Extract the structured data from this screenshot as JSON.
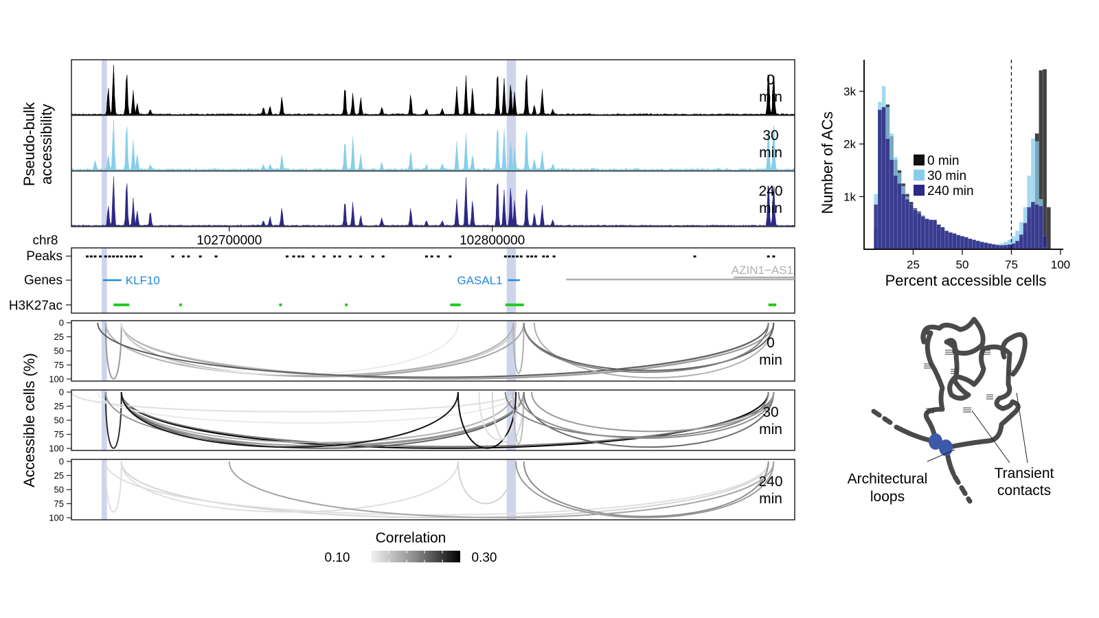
{
  "chart_data": [
    {
      "id": "pseudobulk",
      "type": "area",
      "ylabel": [
        "Pseudo-bulk",
        "accessibility"
      ],
      "x_axis": {
        "chromosome": "chr8",
        "range": [
          102640000,
          102915000
        ],
        "ticks": [
          102700000,
          102800000
        ],
        "tick_labels": [
          "102700000",
          "102800000"
        ]
      },
      "highlight_regions": [
        [
          102651500,
          102653500
        ],
        [
          102805500,
          102809000
        ]
      ],
      "series": [
        {
          "name": "0 min",
          "label": [
            "0",
            "min"
          ],
          "color": "#000000",
          "peaks": [
            [
              102654000,
              0.55
            ],
            [
              102656000,
              1.0
            ],
            [
              102661000,
              0.88
            ],
            [
              102663500,
              0.48
            ],
            [
              102665000,
              0.22
            ],
            [
              102670000,
              0.1
            ],
            [
              102713000,
              0.15
            ],
            [
              102715500,
              0.17
            ],
            [
              102720000,
              0.36
            ],
            [
              102744000,
              0.58
            ],
            [
              102747000,
              0.42
            ],
            [
              102750000,
              0.35
            ],
            [
              102758000,
              0.15
            ],
            [
              102769000,
              0.4
            ],
            [
              102775000,
              0.12
            ],
            [
              102781000,
              0.12
            ],
            [
              102786500,
              0.55
            ],
            [
              102790000,
              0.78
            ],
            [
              102792500,
              0.55
            ],
            [
              102802000,
              0.9
            ],
            [
              102804500,
              0.72
            ],
            [
              102807000,
              0.64
            ],
            [
              102808500,
              0.45
            ],
            [
              102813000,
              0.88
            ],
            [
              102816000,
              0.2
            ],
            [
              102819000,
              0.5
            ],
            [
              102823000,
              0.1
            ],
            [
              102905000,
              0.95
            ],
            [
              102907000,
              0.88
            ]
          ]
        },
        {
          "name": "30 min",
          "label": [
            "30",
            "min"
          ],
          "color": "#87ceeb",
          "peaks": [
            [
              102649000,
              0.2
            ],
            [
              102654000,
              0.3
            ],
            [
              102656000,
              1.0
            ],
            [
              102661000,
              0.95
            ],
            [
              102663500,
              0.6
            ],
            [
              102665000,
              0.3
            ],
            [
              102670000,
              0.1
            ],
            [
              102713000,
              0.1
            ],
            [
              102715500,
              0.12
            ],
            [
              102720000,
              0.28
            ],
            [
              102744000,
              0.62
            ],
            [
              102747000,
              0.66
            ],
            [
              102750000,
              0.3
            ],
            [
              102758000,
              0.15
            ],
            [
              102769000,
              0.35
            ],
            [
              102775000,
              0.1
            ],
            [
              102781000,
              0.1
            ],
            [
              102786500,
              0.55
            ],
            [
              102790000,
              0.7
            ],
            [
              102792500,
              0.3
            ],
            [
              102802000,
              0.95
            ],
            [
              102804500,
              0.8
            ],
            [
              102807000,
              0.6
            ],
            [
              102808500,
              0.4
            ],
            [
              102813000,
              0.84
            ],
            [
              102816000,
              0.2
            ],
            [
              102819000,
              0.36
            ],
            [
              102823000,
              0.12
            ],
            [
              102905000,
              0.85
            ],
            [
              102907000,
              1.0
            ]
          ]
        },
        {
          "name": "240 min",
          "label": [
            "240",
            "min"
          ],
          "color": "#2e2886",
          "peaks": [
            [
              102654000,
              0.4
            ],
            [
              102656000,
              1.0
            ],
            [
              102661000,
              0.95
            ],
            [
              102663500,
              0.56
            ],
            [
              102665000,
              0.3
            ],
            [
              102670000,
              0.3
            ],
            [
              102713000,
              0.1
            ],
            [
              102715500,
              0.18
            ],
            [
              102720000,
              0.36
            ],
            [
              102744000,
              0.52
            ],
            [
              102747000,
              0.48
            ],
            [
              102750000,
              0.2
            ],
            [
              102758000,
              0.15
            ],
            [
              102769000,
              0.36
            ],
            [
              102775000,
              0.1
            ],
            [
              102781000,
              0.1
            ],
            [
              102786500,
              0.52
            ],
            [
              102790000,
              0.97
            ],
            [
              102792500,
              0.52
            ],
            [
              102802000,
              1.0
            ],
            [
              102804500,
              0.72
            ],
            [
              102807000,
              0.8
            ],
            [
              102808500,
              0.5
            ],
            [
              102813000,
              0.8
            ],
            [
              102816000,
              0.25
            ],
            [
              102819000,
              0.4
            ],
            [
              102823000,
              0.12
            ],
            [
              102905000,
              0.95
            ],
            [
              102907000,
              0.9
            ]
          ]
        }
      ]
    },
    {
      "id": "annotation-tracks",
      "type": "table",
      "tracks": [
        "Peaks",
        "Genes",
        "H3K27ac"
      ],
      "peaks": [
        102646000,
        102647500,
        102649000,
        102651000,
        102653000,
        102654500,
        102656000,
        102657500,
        102659000,
        102661000,
        102662500,
        102664000,
        102666500,
        102678500,
        102682500,
        102684500,
        102689000,
        102695000,
        102722000,
        102724500,
        102726500,
        102728000,
        102732000,
        102736000,
        102740000,
        102742000,
        102746000,
        102750000,
        102754500,
        102758500,
        102775000,
        102777000,
        102779500,
        102784000,
        102805000,
        102806500,
        102808000,
        102809500,
        102811000,
        102813500,
        102815000,
        102816500,
        102819500,
        102821000,
        102823500,
        102877000,
        102905000,
        102907000
      ],
      "genes": [
        {
          "name": "KLF10",
          "start": 102652000,
          "end": 102659000,
          "color": "#1e88e5"
        },
        {
          "name": "GASAL1",
          "start": 102806000,
          "end": 102810500,
          "color": "#1e88e5"
        },
        {
          "name": "AZIN1−AS1",
          "start": 102828000,
          "end": 102915000,
          "color": "#b0b0b0"
        }
      ],
      "h3k27ac": [
        [
          102656000,
          102662000
        ],
        [
          102681000,
          102682000
        ],
        [
          102719000,
          102720000
        ],
        [
          102744000,
          102745000
        ],
        [
          102784000,
          102788000
        ],
        [
          102805000,
          102812000
        ],
        [
          102905000,
          102908000
        ]
      ],
      "h3k27ac_color": "#22cc22"
    },
    {
      "id": "co-accessibility-arcs",
      "type": "line",
      "ylabel": "Accessible cells (%)",
      "y_ticks": [
        "0",
        "25",
        "50",
        "75",
        "100"
      ],
      "ylim": [
        0,
        100
      ],
      "colorbar": {
        "title": "Correlation",
        "min_label": "0.10",
        "max_label": "0.30",
        "range": [
          0.1,
          0.3
        ]
      },
      "panels": [
        {
          "name": "0 min",
          "label": [
            "0",
            "min"
          ],
          "arcs": [
            [
              102653000,
              102659000,
              100,
              0.17
            ],
            [
              102659000,
              102907000,
              100,
              0.17
            ],
            [
              102659000,
              102905000,
              98,
              0.14
            ],
            [
              102659000,
              102809000,
              95,
              0.13
            ],
            [
              102659000,
              102812000,
              96,
              0.16
            ],
            [
              102653000,
              102808000,
              94,
              0.15
            ],
            [
              102659000,
              102787000,
              92,
              0.1
            ],
            [
              102650000,
              102905000,
              97,
              0.22
            ],
            [
              102808000,
              102812000,
              90,
              0.15
            ],
            [
              102816000,
              102907000,
              98,
              0.15
            ],
            [
              102812000,
              102907000,
              85,
              0.22
            ],
            [
              102812000,
              102905000,
              88,
              0.19
            ]
          ]
        },
        {
          "name": "30 min",
          "label": [
            "30",
            "min"
          ],
          "arcs": [
            [
              102653000,
              102659000,
              100,
              0.26
            ],
            [
              102659000,
              102905000,
              100,
              0.3
            ],
            [
              102659000,
              102907000,
              97,
              0.2
            ],
            [
              102659000,
              102812000,
              96,
              0.18
            ],
            [
              102659000,
              102808000,
              90,
              0.15
            ],
            [
              102650000,
              102809000,
              55,
              0.1
            ],
            [
              102640000,
              102809000,
              35,
              0.11
            ],
            [
              102659000,
              102812000,
              100,
              0.22
            ],
            [
              102653000,
              102812000,
              95,
              0.17
            ],
            [
              102659000,
              102787000,
              98,
              0.28
            ],
            [
              102787000,
              102809000,
              100,
              0.29
            ],
            [
              102795000,
              102810000,
              85,
              0.11
            ],
            [
              102800000,
              102812000,
              90,
              0.12
            ],
            [
              102808000,
              102812000,
              92,
              0.14
            ],
            [
              102812000,
              102907000,
              98,
              0.21
            ],
            [
              102805000,
              102905000,
              80,
              0.19
            ],
            [
              102810000,
              102907000,
              82,
              0.18
            ],
            [
              102815000,
              102907000,
              70,
              0.17
            ]
          ]
        },
        {
          "name": "240 min",
          "label": [
            "240",
            "min"
          ],
          "arcs": [
            [
              102653000,
              102659000,
              90,
              0.11
            ],
            [
              102659000,
              102905000,
              100,
              0.12
            ],
            [
              102653000,
              102905000,
              95,
              0.11
            ],
            [
              102659000,
              102787000,
              90,
              0.11
            ],
            [
              102787000,
              102808000,
              75,
              0.12
            ],
            [
              102809000,
              102907000,
              100,
              0.17
            ],
            [
              102812000,
              102905000,
              98,
              0.18
            ],
            [
              102700000,
              102907000,
              100,
              0.16
            ]
          ]
        }
      ]
    },
    {
      "id": "histogram",
      "type": "bar",
      "xlabel": "Percent accessible cells",
      "ylabel": "Number of ACs",
      "xlim": [
        0,
        100
      ],
      "ylim": [
        0,
        3600
      ],
      "x_ticks": [
        25,
        50,
        75,
        100
      ],
      "x_tick_labels": [
        "25",
        "50",
        "75",
        "100"
      ],
      "y_ticks": [
        1000,
        2000,
        3000
      ],
      "y_tick_labels": [
        "1k",
        "2k",
        "3k"
      ],
      "vline": 75,
      "bin_start": 5,
      "bin_width": 2,
      "legend_position": "center-left",
      "series": [
        {
          "name": "0 min",
          "color": "#111111",
          "values": [
            400,
            2650,
            2700,
            2750,
            2150,
            1700,
            1500,
            1250,
            1050,
            900,
            780,
            720,
            640,
            570,
            560,
            540,
            470,
            420,
            350,
            320,
            300,
            270,
            250,
            230,
            200,
            180,
            160,
            140,
            125,
            110,
            95,
            80,
            80,
            85,
            95,
            110,
            150,
            220,
            350,
            580,
            850,
            2200,
            3400,
            3420,
            800
          ]
        },
        {
          "name": "30 min",
          "color": "#87ceeb",
          "values": [
            1050,
            2800,
            3100,
            2700,
            2200,
            1750,
            1450,
            1200,
            1000,
            850,
            760,
            700,
            630,
            570,
            560,
            540,
            470,
            420,
            350,
            320,
            300,
            270,
            250,
            230,
            200,
            180,
            160,
            140,
            125,
            110,
            100,
            100,
            110,
            140,
            180,
            250,
            350,
            520,
            800,
            1400,
            2100,
            2050,
            950,
            50,
            0
          ]
        },
        {
          "name": "240 min",
          "color": "#2e2886",
          "values": [
            850,
            2650,
            2700,
            2100,
            1700,
            1400,
            1250,
            1050,
            950,
            850,
            750,
            690,
            620,
            580,
            560,
            560,
            470,
            420,
            350,
            320,
            300,
            270,
            250,
            230,
            200,
            180,
            160,
            140,
            125,
            110,
            95,
            80,
            75,
            80,
            90,
            110,
            160,
            280,
            500,
            800,
            900,
            850,
            820,
            250,
            0
          ]
        }
      ]
    }
  ],
  "diagram": {
    "labels": {
      "architectural": [
        "Architectural",
        "loops"
      ],
      "transient": [
        "Transient",
        "contacts"
      ]
    },
    "chromatin_color": "#4a4a4a",
    "anchor_color": "#3d5aaa"
  }
}
